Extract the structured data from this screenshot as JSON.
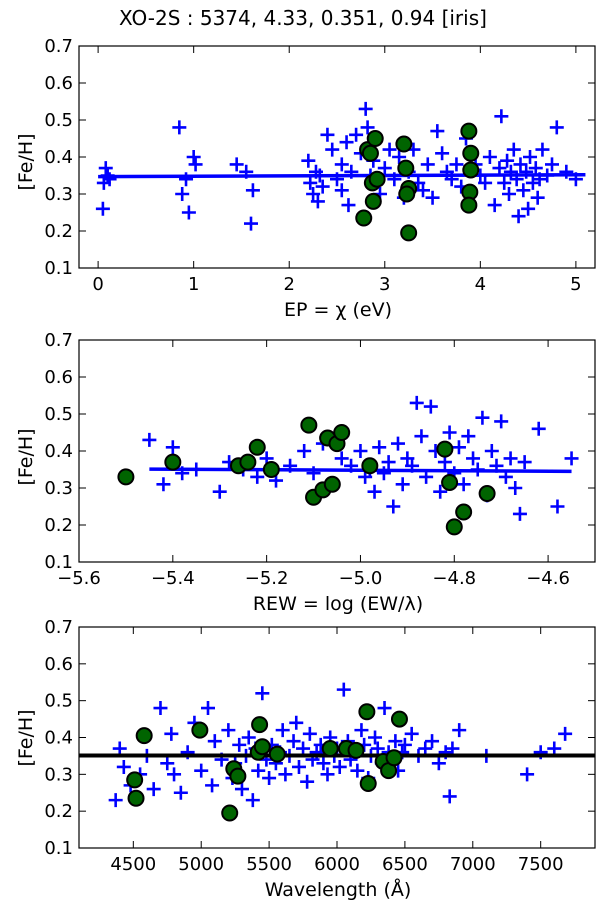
{
  "title": "XO-2S : 5374, 4.33, 0.351, 0.94 [iris]",
  "colors": {
    "fe1": "#0000ff",
    "fe2": "#006400",
    "fe2_edge": "#000000",
    "fit": "#0000ff",
    "mean": "#000000"
  },
  "chart_data": [
    {
      "type": "scatter",
      "xlabel": "EP = χ (eV)",
      "ylabel": "[Fe/H]",
      "xlim": [
        -0.2,
        5.2
      ],
      "ylim": [
        0.1,
        0.7
      ],
      "xticks": [
        0,
        1,
        2,
        3,
        4,
        5
      ],
      "xtick_labels": [
        "0",
        "1",
        "2",
        "3",
        "4",
        "5"
      ],
      "yticks": [
        0.1,
        0.2,
        0.3,
        0.4,
        0.5,
        0.6,
        0.7
      ],
      "ytick_labels": [
        "0.1",
        "0.2",
        "0.3",
        "0.4",
        "0.5",
        "0.6",
        "0.7"
      ],
      "fit_line": {
        "x": [
          0.0,
          5.1
        ],
        "y": [
          0.347,
          0.352
        ],
        "color": "#0000ff"
      },
      "series": [
        {
          "marker": "plus",
          "x": [
            0.05,
            0.06,
            0.08,
            0.1,
            0.12,
            0.85,
            0.88,
            0.92,
            0.95,
            1.0,
            1.02,
            1.45,
            1.55,
            1.6,
            1.62,
            2.2,
            2.22,
            2.25,
            2.28,
            2.3,
            2.32,
            2.35,
            2.4,
            2.45,
            2.5,
            2.55,
            2.55,
            2.6,
            2.62,
            2.65,
            2.7,
            2.75,
            2.8,
            2.82,
            2.85,
            2.88,
            2.9,
            2.95,
            3.0,
            3.05,
            3.1,
            3.15,
            3.2,
            3.25,
            3.3,
            3.35,
            3.4,
            3.45,
            3.5,
            3.55,
            3.6,
            3.65,
            3.7,
            3.75,
            3.8,
            3.85,
            3.95,
            4.0,
            4.05,
            4.1,
            4.15,
            4.2,
            4.22,
            4.25,
            4.28,
            4.3,
            4.32,
            4.35,
            4.38,
            4.4,
            4.42,
            4.45,
            4.48,
            4.5,
            4.52,
            4.55,
            4.58,
            4.6,
            4.62,
            4.65,
            4.7,
            4.75,
            4.8,
            4.9,
            5.0
          ],
          "y": [
            0.26,
            0.33,
            0.37,
            0.35,
            0.34,
            0.48,
            0.3,
            0.34,
            0.25,
            0.4,
            0.38,
            0.38,
            0.36,
            0.22,
            0.31,
            0.39,
            0.33,
            0.3,
            0.36,
            0.28,
            0.35,
            0.32,
            0.46,
            0.42,
            0.34,
            0.31,
            0.38,
            0.44,
            0.27,
            0.36,
            0.46,
            0.41,
            0.53,
            0.48,
            0.35,
            0.39,
            0.33,
            0.3,
            0.37,
            0.42,
            0.34,
            0.4,
            0.29,
            0.36,
            0.42,
            0.33,
            0.31,
            0.38,
            0.29,
            0.47,
            0.41,
            0.36,
            0.34,
            0.38,
            0.32,
            0.45,
            0.38,
            0.35,
            0.33,
            0.4,
            0.27,
            0.37,
            0.51,
            0.33,
            0.39,
            0.3,
            0.36,
            0.42,
            0.34,
            0.24,
            0.38,
            0.31,
            0.36,
            0.26,
            0.4,
            0.33,
            0.37,
            0.29,
            0.34,
            0.42,
            0.35,
            0.38,
            0.48,
            0.36,
            0.34
          ]
        },
        {
          "marker": "circle",
          "x": [
            2.82,
            2.85,
            2.87,
            2.9,
            2.92,
            2.88,
            2.78,
            3.2,
            3.22,
            3.25,
            3.23,
            3.25,
            3.88,
            3.9,
            3.9,
            3.89,
            3.88
          ],
          "y": [
            0.42,
            0.41,
            0.33,
            0.45,
            0.34,
            0.28,
            0.235,
            0.435,
            0.37,
            0.315,
            0.3,
            0.195,
            0.47,
            0.41,
            0.365,
            0.305,
            0.27
          ]
        }
      ]
    },
    {
      "type": "scatter",
      "xlabel": "REW = log (EW/λ)",
      "ylabel": "[Fe/H]",
      "xlim": [
        -5.6,
        -4.5
      ],
      "ylim": [
        0.1,
        0.7
      ],
      "xticks": [
        -5.6,
        -5.4,
        -5.2,
        -5.0,
        -4.8,
        -4.6
      ],
      "xtick_labels": [
        "−5.6",
        "−5.4",
        "−5.2",
        "−5.0",
        "−4.8",
        "−4.6"
      ],
      "yticks": [
        0.1,
        0.2,
        0.3,
        0.4,
        0.5,
        0.6,
        0.7
      ],
      "ytick_labels": [
        "0.1",
        "0.2",
        "0.3",
        "0.4",
        "0.5",
        "0.6",
        "0.7"
      ],
      "fit_line": {
        "x": [
          -5.45,
          -4.55
        ],
        "y": [
          0.351,
          0.345
        ],
        "color": "#0000ff"
      },
      "series": [
        {
          "marker": "plus",
          "x": [
            -5.45,
            -5.42,
            -5.4,
            -5.38,
            -5.35,
            -5.3,
            -5.28,
            -5.25,
            -5.22,
            -5.2,
            -5.18,
            -5.15,
            -5.12,
            -5.1,
            -5.08,
            -5.06,
            -5.04,
            -5.02,
            -5.0,
            -4.99,
            -4.98,
            -4.97,
            -4.96,
            -4.95,
            -4.94,
            -4.93,
            -4.92,
            -4.91,
            -4.9,
            -4.89,
            -4.88,
            -4.87,
            -4.86,
            -4.85,
            -4.84,
            -4.83,
            -4.82,
            -4.81,
            -4.8,
            -4.79,
            -4.78,
            -4.77,
            -4.76,
            -4.75,
            -4.74,
            -4.73,
            -4.72,
            -4.71,
            -4.7,
            -4.69,
            -4.68,
            -4.67,
            -4.66,
            -4.65,
            -4.62,
            -4.58,
            -4.55
          ],
          "y": [
            0.43,
            0.31,
            0.41,
            0.34,
            0.35,
            0.29,
            0.37,
            0.35,
            0.33,
            0.38,
            0.32,
            0.36,
            0.4,
            0.34,
            0.42,
            0.31,
            0.38,
            0.36,
            0.4,
            0.33,
            0.35,
            0.29,
            0.41,
            0.34,
            0.37,
            0.25,
            0.42,
            0.31,
            0.38,
            0.36,
            0.53,
            0.44,
            0.33,
            0.52,
            0.4,
            0.29,
            0.37,
            0.45,
            0.34,
            0.41,
            0.31,
            0.44,
            0.38,
            0.35,
            0.49,
            0.28,
            0.4,
            0.36,
            0.48,
            0.33,
            0.38,
            0.3,
            0.23,
            0.37,
            0.46,
            0.25,
            0.38
          ]
        },
        {
          "marker": "circle",
          "x": [
            -5.5,
            -5.4,
            -5.26,
            -5.24,
            -5.22,
            -5.19,
            -5.11,
            -5.1,
            -5.08,
            -5.07,
            -5.06,
            -5.05,
            -5.04,
            -4.98,
            -4.82,
            -4.81,
            -4.8,
            -4.78,
            -4.73
          ],
          "y": [
            0.33,
            0.37,
            0.36,
            0.37,
            0.41,
            0.35,
            0.47,
            0.275,
            0.295,
            0.435,
            0.31,
            0.42,
            0.45,
            0.36,
            0.405,
            0.315,
            0.195,
            0.235,
            0.285
          ]
        }
      ]
    },
    {
      "type": "scatter",
      "xlabel": "Wavelength (Å)",
      "ylabel": "[Fe/H]",
      "xlim": [
        4100,
        7900
      ],
      "ylim": [
        0.1,
        0.7
      ],
      "xticks": [
        4500,
        5000,
        5500,
        6000,
        6500,
        7000,
        7500
      ],
      "xtick_labels": [
        "4500",
        "5000",
        "5500",
        "6000",
        "6500",
        "7000",
        "7500"
      ],
      "yticks": [
        0.1,
        0.2,
        0.3,
        0.4,
        0.5,
        0.6,
        0.7
      ],
      "ytick_labels": [
        "0.1",
        "0.2",
        "0.3",
        "0.4",
        "0.5",
        "0.6",
        "0.7"
      ],
      "fit_line": {
        "x": [
          4100,
          7900
        ],
        "y": [
          0.351,
          0.351
        ],
        "color": "#000000"
      },
      "series": [
        {
          "marker": "plus",
          "x": [
            4370,
            4400,
            4430,
            4480,
            4550,
            4600,
            4650,
            4700,
            4750,
            4780,
            4800,
            4850,
            4900,
            4950,
            5000,
            5050,
            5080,
            5100,
            5150,
            5200,
            5230,
            5250,
            5280,
            5300,
            5330,
            5350,
            5380,
            5400,
            5420,
            5450,
            5480,
            5500,
            5520,
            5550,
            5580,
            5600,
            5620,
            5650,
            5680,
            5700,
            5720,
            5750,
            5780,
            5800,
            5820,
            5850,
            5880,
            5900,
            5930,
            5950,
            5980,
            6000,
            6020,
            6050,
            6080,
            6100,
            6130,
            6150,
            6180,
            6200,
            6230,
            6250,
            6280,
            6300,
            6330,
            6350,
            6380,
            6400,
            6430,
            6450,
            6480,
            6500,
            6550,
            6600,
            6650,
            6700,
            6750,
            6800,
            6830,
            6850,
            6900,
            7100,
            7400,
            7500,
            7600,
            7680
          ],
          "y": [
            0.23,
            0.37,
            0.32,
            0.27,
            0.3,
            0.35,
            0.26,
            0.48,
            0.33,
            0.41,
            0.3,
            0.25,
            0.36,
            0.44,
            0.31,
            0.48,
            0.27,
            0.39,
            0.34,
            0.42,
            0.29,
            0.33,
            0.38,
            0.26,
            0.35,
            0.4,
            0.23,
            0.37,
            0.31,
            0.52,
            0.34,
            0.29,
            0.38,
            0.33,
            0.36,
            0.42,
            0.3,
            0.35,
            0.39,
            0.44,
            0.32,
            0.37,
            0.28,
            0.41,
            0.34,
            0.36,
            0.38,
            0.33,
            0.3,
            0.4,
            0.35,
            0.37,
            0.32,
            0.53,
            0.39,
            0.34,
            0.36,
            0.31,
            0.42,
            0.38,
            0.29,
            0.35,
            0.4,
            0.37,
            0.33,
            0.48,
            0.36,
            0.34,
            0.39,
            0.31,
            0.36,
            0.38,
            0.41,
            0.35,
            0.37,
            0.39,
            0.33,
            0.36,
            0.24,
            0.37,
            0.42,
            0.35,
            0.3,
            0.36,
            0.37,
            0.41
          ]
        },
        {
          "marker": "circle",
          "x": [
            4510,
            4520,
            4580,
            4990,
            5210,
            5240,
            5270,
            5420,
            5430,
            5450,
            5560,
            5950,
            6070,
            6140,
            6220,
            6230,
            6340,
            6380,
            6420,
            6460
          ],
          "y": [
            0.285,
            0.235,
            0.405,
            0.42,
            0.195,
            0.315,
            0.295,
            0.36,
            0.435,
            0.375,
            0.355,
            0.37,
            0.37,
            0.365,
            0.47,
            0.275,
            0.335,
            0.31,
            0.345,
            0.45
          ]
        }
      ]
    }
  ]
}
